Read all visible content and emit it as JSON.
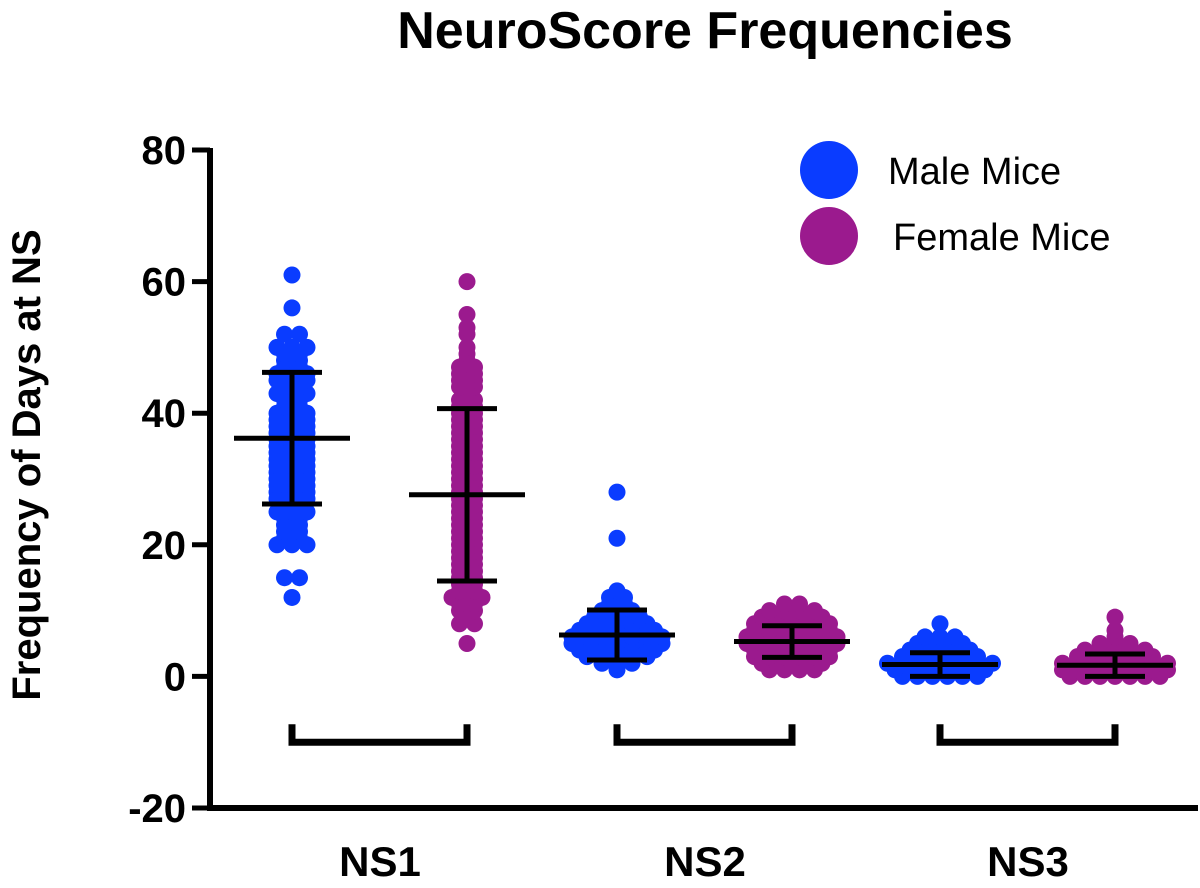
{
  "chart_data": {
    "type": "scatter",
    "title": "NeuroScore Frequencies",
    "xlabel": "",
    "ylabel": "Frequency of Days at NS",
    "ylim": [
      -20,
      80
    ],
    "yticks": [
      -20,
      0,
      20,
      40,
      60,
      80
    ],
    "categories": [
      "NS1",
      "NS2",
      "NS3"
    ],
    "grid": false,
    "legend_position": "top-right",
    "series": [
      {
        "name": "Male Mice",
        "color": "#0a3cff",
        "groups": [
          {
            "category": "NS1",
            "mean": 36.2,
            "sd_low": 26.2,
            "sd_high": 46.2,
            "values": [
              61,
              56,
              52,
              52,
              50,
              50,
              50,
              49,
              49,
              48,
              48,
              47,
              47,
              46,
              46,
              46,
              45,
              45,
              45,
              44,
              44,
              43,
              43,
              43,
              42,
              42,
              41,
              41,
              40,
              40,
              40,
              39,
              39,
              39,
              38,
              38,
              38,
              37,
              37,
              37,
              36,
              36,
              36,
              35,
              35,
              35,
              34,
              34,
              34,
              33,
              33,
              33,
              32,
              32,
              32,
              31,
              31,
              31,
              30,
              30,
              30,
              29,
              29,
              29,
              28,
              28,
              28,
              27,
              27,
              27,
              26,
              26,
              25,
              25,
              25,
              24,
              24,
              23,
              23,
              22,
              22,
              21,
              21,
              20,
              20,
              20,
              15,
              15,
              12
            ]
          },
          {
            "category": "NS2",
            "mean": 6.3,
            "sd_low": 2.5,
            "sd_high": 10.1,
            "values": [
              28,
              21,
              13,
              12,
              12,
              11,
              11,
              10,
              10,
              10,
              9,
              9,
              9,
              9,
              8,
              8,
              8,
              8,
              8,
              7,
              7,
              7,
              7,
              7,
              7,
              6,
              6,
              6,
              6,
              6,
              6,
              6,
              5,
              5,
              5,
              5,
              5,
              5,
              5,
              4,
              4,
              4,
              4,
              4,
              4,
              3,
              3,
              3,
              3,
              3,
              2,
              2,
              2,
              1
            ]
          },
          {
            "category": "NS3",
            "mean": 1.8,
            "sd_low": 0.0,
            "sd_high": 3.6,
            "values": [
              8,
              6,
              6,
              6,
              5,
              5,
              5,
              5,
              4,
              4,
              4,
              4,
              4,
              3,
              3,
              3,
              3,
              3,
              3,
              2,
              2,
              2,
              2,
              2,
              2,
              2,
              2,
              1,
              1,
              1,
              1,
              1,
              1,
              1,
              0,
              0,
              0,
              0,
              0,
              0
            ]
          }
        ]
      },
      {
        "name": "Female Mice",
        "color": "#9b1a8e",
        "groups": [
          {
            "category": "NS1",
            "mean": 27.6,
            "sd_low": 14.5,
            "sd_high": 40.7,
            "values": [
              60,
              55,
              53,
              52,
              50,
              49,
              48,
              47,
              47,
              46,
              46,
              45,
              45,
              44,
              44,
              43,
              42,
              42,
              41,
              41,
              40,
              40,
              39,
              39,
              38,
              38,
              37,
              37,
              36,
              36,
              35,
              35,
              34,
              34,
              33,
              33,
              32,
              32,
              31,
              31,
              30,
              30,
              29,
              29,
              28,
              28,
              27,
              27,
              26,
              26,
              25,
              25,
              24,
              24,
              23,
              23,
              22,
              22,
              21,
              21,
              20,
              20,
              19,
              19,
              18,
              18,
              17,
              17,
              16,
              16,
              15,
              15,
              14,
              14,
              13,
              13,
              12,
              12,
              12,
              11,
              11,
              10,
              10,
              9,
              8,
              8,
              5
            ]
          },
          {
            "category": "NS2",
            "mean": 5.3,
            "sd_low": 2.9,
            "sd_high": 7.7,
            "values": [
              11,
              11,
              10,
              10,
              10,
              10,
              9,
              9,
              9,
              9,
              9,
              8,
              8,
              8,
              8,
              8,
              8,
              7,
              7,
              7,
              7,
              7,
              7,
              6,
              6,
              6,
              6,
              6,
              6,
              6,
              5,
              5,
              5,
              5,
              5,
              5,
              5,
              4,
              4,
              4,
              4,
              4,
              4,
              3,
              3,
              3,
              3,
              3,
              3,
              2,
              2,
              2,
              2,
              2,
              1,
              1,
              1,
              1
            ]
          },
          {
            "category": "NS3",
            "mean": 1.7,
            "sd_low": 0.0,
            "sd_high": 3.4,
            "values": [
              9,
              7,
              6,
              5,
              5,
              5,
              4,
              4,
              4,
              4,
              4,
              3,
              3,
              3,
              3,
              3,
              3,
              2,
              2,
              2,
              2,
              2,
              2,
              2,
              2,
              1,
              1,
              1,
              1,
              1,
              1,
              1,
              1,
              0,
              0,
              0,
              0,
              0,
              0,
              0
            ]
          }
        ]
      }
    ]
  }
}
